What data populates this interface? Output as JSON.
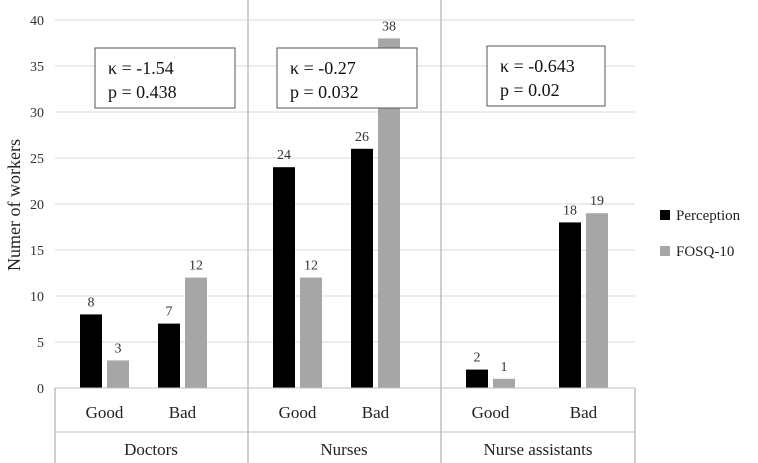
{
  "chart_data": {
    "type": "bar",
    "title": "",
    "ylabel": "Numer of workers",
    "xlabel": "",
    "ylim": [
      0,
      40
    ],
    "yticks": [
      0,
      5,
      10,
      15,
      20,
      25,
      30,
      35,
      40
    ],
    "grid": true,
    "legend_position": "right",
    "groups": [
      {
        "name": "Doctors",
        "categories": [
          "Good",
          "Bad"
        ],
        "stats": [
          "κ = -1.54",
          "p = 0.438"
        ]
      },
      {
        "name": "Nurses",
        "categories": [
          "Good",
          "Bad"
        ],
        "stats": [
          "κ = -0.27",
          "p = 0.032"
        ]
      },
      {
        "name": "Nurse assistants",
        "categories": [
          "Good",
          "Bad"
        ],
        "stats": [
          "κ = -0.643",
          "p = 0.02"
        ]
      }
    ],
    "series": [
      {
        "name": "Perception",
        "color": "#000000",
        "values": [
          8,
          7,
          24,
          26,
          2,
          18
        ]
      },
      {
        "name": "FOSQ-10",
        "color": "#a6a6a6",
        "values": [
          3,
          12,
          12,
          38,
          1,
          19
        ]
      }
    ]
  }
}
